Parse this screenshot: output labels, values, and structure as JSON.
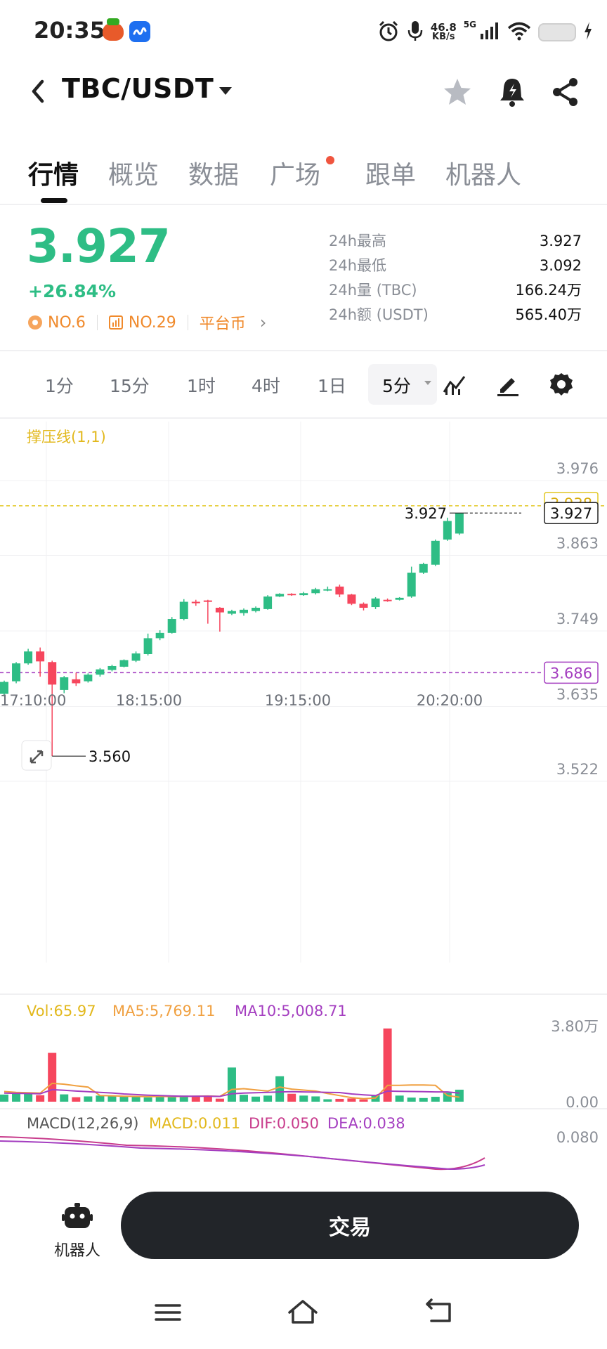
{
  "status_bar": {
    "time": "20:35",
    "net_speed_value": "46.8",
    "net_speed_unit": "KB/s",
    "network": "5G",
    "icons": [
      "app-icon-orange",
      "app-icon-blue",
      "alarm-icon",
      "mic-icon",
      "signal-icon",
      "wifi-icon",
      "battery-icon",
      "charging-icon"
    ]
  },
  "header": {
    "pair": "TBC/USDT",
    "icons": [
      "back-arrow-icon",
      "dropdown-caret-icon",
      "star-icon",
      "price-alert-bell-icon",
      "share-icon"
    ]
  },
  "tabs": [
    {
      "label": "行情",
      "active": true
    },
    {
      "label": "概览",
      "active": false
    },
    {
      "label": "数据",
      "active": false
    },
    {
      "label": "广场",
      "active": false,
      "badge_dot": true
    },
    {
      "label": "跟单",
      "active": false
    },
    {
      "label": "机器人",
      "active": false
    }
  ],
  "ticker": {
    "price": "3.927",
    "change": "+26.84%",
    "rank1": "NO.6",
    "rank2": "NO.29",
    "platform_coin": "平台币",
    "stats": [
      {
        "label": "24h最高",
        "value": "3.927"
      },
      {
        "label": "24h最低",
        "value": "3.092"
      },
      {
        "label": "24h量 (TBC)",
        "value": "166.24万"
      },
      {
        "label": "24h额 (USDT)",
        "value": "565.40万"
      }
    ]
  },
  "intervals": {
    "items": [
      "1分",
      "15分",
      "1时",
      "4时",
      "1日"
    ],
    "selected": "5分",
    "tool_icons": [
      "indicator-icon",
      "draw-icon",
      "settings-icon"
    ]
  },
  "colors": {
    "up": "#2ebd85",
    "down": "#f6465d",
    "support_line": "#e2c824",
    "resistance_line": "#a43ec0",
    "ma5": "#f0a040",
    "ma10": "#a43ec0",
    "macd_dif": "#c83c8c",
    "macd_dea": "#a43ec0"
  },
  "chart_data": {
    "type": "candlestick",
    "indicator_label": "撑压线(1,1)",
    "y_ticks": [
      "3.976",
      "3.863",
      "3.749",
      "3.635",
      "3.522"
    ],
    "ylim": [
      3.522,
      3.976
    ],
    "x_ticks": [
      "17:10:00",
      "18:15:00",
      "19:15:00",
      "20:20:00"
    ],
    "last_price_label": "3.927",
    "last_price_tag": "3.927",
    "support_tag": "3.938",
    "resistance_tag": "3.686",
    "support_level": 3.938,
    "resistance_level": 3.686,
    "low_marker": "3.560",
    "low_marker_value": 3.56,
    "candles": [
      {
        "o": 3.654,
        "h": 3.674,
        "l": 3.65,
        "c": 3.672
      },
      {
        "o": 3.673,
        "h": 3.702,
        "l": 3.67,
        "c": 3.7
      },
      {
        "o": 3.7,
        "h": 3.722,
        "l": 3.698,
        "c": 3.718
      },
      {
        "o": 3.718,
        "h": 3.724,
        "l": 3.68,
        "c": 3.703
      },
      {
        "o": 3.702,
        "h": 3.704,
        "l": 3.56,
        "c": 3.668
      },
      {
        "o": 3.66,
        "h": 3.681,
        "l": 3.655,
        "c": 3.679
      },
      {
        "o": 3.676,
        "h": 3.686,
        "l": 3.666,
        "c": 3.67
      },
      {
        "o": 3.673,
        "h": 3.685,
        "l": 3.671,
        "c": 3.683
      },
      {
        "o": 3.683,
        "h": 3.693,
        "l": 3.68,
        "c": 3.691
      },
      {
        "o": 3.69,
        "h": 3.698,
        "l": 3.688,
        "c": 3.696
      },
      {
        "o": 3.695,
        "h": 3.706,
        "l": 3.694,
        "c": 3.705
      },
      {
        "o": 3.704,
        "h": 3.718,
        "l": 3.702,
        "c": 3.715
      },
      {
        "o": 3.714,
        "h": 3.745,
        "l": 3.712,
        "c": 3.738
      },
      {
        "o": 3.738,
        "h": 3.75,
        "l": 3.735,
        "c": 3.746
      },
      {
        "o": 3.746,
        "h": 3.77,
        "l": 3.745,
        "c": 3.767
      },
      {
        "o": 3.767,
        "h": 3.797,
        "l": 3.765,
        "c": 3.793
      },
      {
        "o": 3.793,
        "h": 3.796,
        "l": 3.787,
        "c": 3.792
      },
      {
        "o": 3.795,
        "h": 3.796,
        "l": 3.76,
        "c": 3.794
      },
      {
        "o": 3.784,
        "h": 3.785,
        "l": 3.748,
        "c": 3.777
      },
      {
        "o": 3.775,
        "h": 3.781,
        "l": 3.773,
        "c": 3.779
      },
      {
        "o": 3.776,
        "h": 3.783,
        "l": 3.772,
        "c": 3.781
      },
      {
        "o": 3.779,
        "h": 3.786,
        "l": 3.777,
        "c": 3.784
      },
      {
        "o": 3.782,
        "h": 3.803,
        "l": 3.781,
        "c": 3.801
      },
      {
        "o": 3.801,
        "h": 3.806,
        "l": 3.8,
        "c": 3.805
      },
      {
        "o": 3.805,
        "h": 3.806,
        "l": 3.802,
        "c": 3.804
      },
      {
        "o": 3.803,
        "h": 3.808,
        "l": 3.802,
        "c": 3.806
      },
      {
        "o": 3.806,
        "h": 3.814,
        "l": 3.804,
        "c": 3.812
      },
      {
        "o": 3.811,
        "h": 3.816,
        "l": 3.809,
        "c": 3.812
      },
      {
        "o": 3.816,
        "h": 3.819,
        "l": 3.8,
        "c": 3.804
      },
      {
        "o": 3.804,
        "h": 3.805,
        "l": 3.788,
        "c": 3.79
      },
      {
        "o": 3.79,
        "h": 3.792,
        "l": 3.78,
        "c": 3.784
      },
      {
        "o": 3.785,
        "h": 3.8,
        "l": 3.782,
        "c": 3.798
      },
      {
        "o": 3.796,
        "h": 3.798,
        "l": 3.793,
        "c": 3.795
      },
      {
        "o": 3.796,
        "h": 3.8,
        "l": 3.795,
        "c": 3.799
      },
      {
        "o": 3.801,
        "h": 3.846,
        "l": 3.799,
        "c": 3.837
      },
      {
        "o": 3.837,
        "h": 3.852,
        "l": 3.835,
        "c": 3.85
      },
      {
        "o": 3.849,
        "h": 3.887,
        "l": 3.847,
        "c": 3.885
      },
      {
        "o": 3.887,
        "h": 3.92,
        "l": 3.885,
        "c": 3.915
      },
      {
        "o": 3.896,
        "h": 3.927,
        "l": 3.894,
        "c": 3.927
      }
    ],
    "volume": {
      "label_vol": "Vol:65.97",
      "label_ma5": "MA5:5,769.11",
      "label_ma10": "MA10:5,008.71",
      "y_ticks": [
        "3.80万",
        "0.00"
      ],
      "max": 38000,
      "values": [
        3500,
        4000,
        4500,
        3200,
        24000,
        3600,
        2200,
        2600,
        3000,
        2800,
        2400,
        2600,
        2100,
        2900,
        2300,
        3000,
        2700,
        3100,
        1500,
        16800,
        3400,
        2500,
        3000,
        12500,
        3900,
        3000,
        2600,
        1200,
        1400,
        1600,
        1100,
        3200,
        36000,
        3000,
        2000,
        1800,
        2400,
        4400,
        5900
      ],
      "ma5": [
        5000,
        4600,
        4400,
        4200,
        9000,
        8600,
        7800,
        7200,
        3000,
        2900,
        2700,
        2600,
        2500,
        2600,
        2500,
        2600,
        2700,
        2800,
        2600,
        6000,
        6400,
        5800,
        5200,
        7200,
        6200,
        5700,
        5200,
        4000,
        3000,
        2000,
        1500,
        1800,
        8000,
        8000,
        8200,
        8200,
        8000,
        3000,
        2200
      ],
      "ma10": [
        4200,
        4100,
        4000,
        3900,
        5900,
        5600,
        5200,
        4900,
        4600,
        4300,
        3800,
        3500,
        3200,
        3000,
        2800,
        2700,
        2700,
        2700,
        2600,
        3900,
        4200,
        4400,
        4600,
        4800,
        4900,
        4800,
        4700,
        4600,
        4500,
        3800,
        3400,
        3000,
        5200,
        5100,
        5000,
        4900,
        4800,
        4800,
        4200
      ]
    },
    "macd": {
      "label": "MACD(12,26,9)",
      "label_macd": "MACD:0.011",
      "label_dif": "DIF:0.050",
      "label_dea": "DEA:0.038",
      "y_tick": "0.080"
    }
  },
  "bottom": {
    "robot_label": "机器人",
    "trade_label": "交易"
  },
  "navbar": {
    "icons": [
      "menu-icon",
      "home-icon",
      "back-icon"
    ]
  }
}
